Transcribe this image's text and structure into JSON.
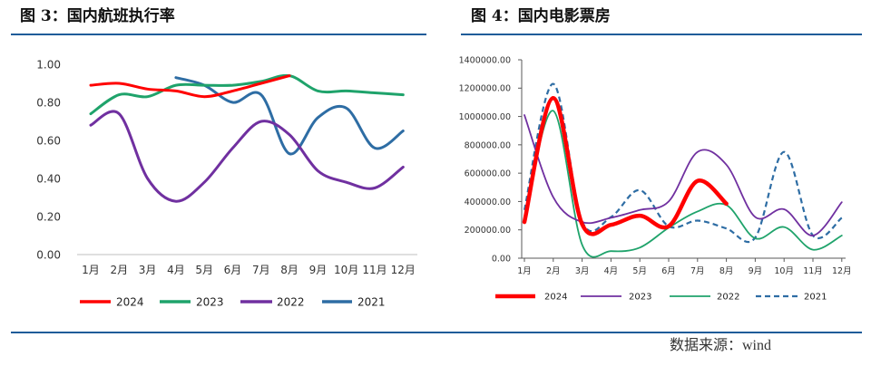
{
  "source": "数据来源：wind",
  "chart_data": [
    {
      "type": "line",
      "title": "图 3：国内航班执行率",
      "categories": [
        "1月",
        "2月",
        "3月",
        "4月",
        "5月",
        "6月",
        "7月",
        "8月",
        "9月",
        "10月",
        "11月",
        "12月"
      ],
      "ylim": [
        0,
        1
      ],
      "yticks": [
        0,
        0.2,
        0.4,
        0.6,
        0.8,
        1.0
      ],
      "ytick_labels": [
        "0.00",
        "0.20",
        "0.40",
        "0.60",
        "0.80",
        "1.00"
      ],
      "grid": false,
      "smooth": true,
      "legend": "bottom",
      "series": [
        {
          "name": "2024",
          "color": "#ff0000",
          "line_style": "solid",
          "values": [
            0.89,
            0.9,
            0.87,
            0.86,
            0.83,
            0.86,
            0.9,
            0.94,
            null,
            null,
            null,
            null
          ]
        },
        {
          "name": "2023",
          "color": "#1fa36b",
          "line_style": "solid",
          "values": [
            0.74,
            0.84,
            0.83,
            0.89,
            0.89,
            0.89,
            0.91,
            0.94,
            0.86,
            0.86,
            0.85,
            0.84
          ]
        },
        {
          "name": "2022",
          "color": "#7030a0",
          "line_style": "solid",
          "values": [
            0.68,
            0.74,
            0.4,
            0.28,
            0.38,
            0.56,
            0.7,
            0.63,
            0.44,
            0.38,
            0.35,
            0.46
          ]
        },
        {
          "name": "2021",
          "color": "#2e6da4",
          "line_style": "solid",
          "values": [
            null,
            null,
            null,
            0.93,
            0.89,
            0.8,
            0.84,
            0.53,
            0.72,
            0.77,
            0.56,
            0.65
          ]
        }
      ]
    },
    {
      "type": "line",
      "title": "图 4：国内电影票房",
      "categories": [
        "1月",
        "2月",
        "3月",
        "4月",
        "5月",
        "6月",
        "7月",
        "8月",
        "9月",
        "10月",
        "11月",
        "12月"
      ],
      "ylim": [
        0,
        1400000
      ],
      "yticks": [
        0,
        200000,
        400000,
        600000,
        800000,
        1000000,
        1200000,
        1400000
      ],
      "ytick_labels": [
        "0.00",
        "200000.00",
        "400000.00",
        "600000.00",
        "800000.00",
        "1000000.00",
        "1200000.00",
        "1400000.00"
      ],
      "grid": false,
      "smooth": true,
      "legend": "bottom",
      "series": [
        {
          "name": "2024",
          "color": "#ff0000",
          "line_style": "solid",
          "values": [
            255000,
            1130000,
            240000,
            235000,
            300000,
            225000,
            545000,
            385000,
            null,
            null,
            null,
            null
          ]
        },
        {
          "name": "2023",
          "color": "#7030a0",
          "line_style": "solid",
          "values": [
            1010000,
            430000,
            255000,
            285000,
            340000,
            400000,
            750000,
            660000,
            290000,
            345000,
            160000,
            395000
          ]
        },
        {
          "name": "2022",
          "color": "#1fa36b",
          "line_style": "solid",
          "values": [
            290000,
            1040000,
            95000,
            50000,
            75000,
            215000,
            330000,
            375000,
            140000,
            220000,
            60000,
            160000
          ]
        },
        {
          "name": "2021",
          "color": "#2e6da4",
          "line_style": "dashed",
          "values": [
            340000,
            1230000,
            260000,
            290000,
            480000,
            225000,
            265000,
            210000,
            145000,
            750000,
            160000,
            285000
          ]
        }
      ]
    }
  ]
}
